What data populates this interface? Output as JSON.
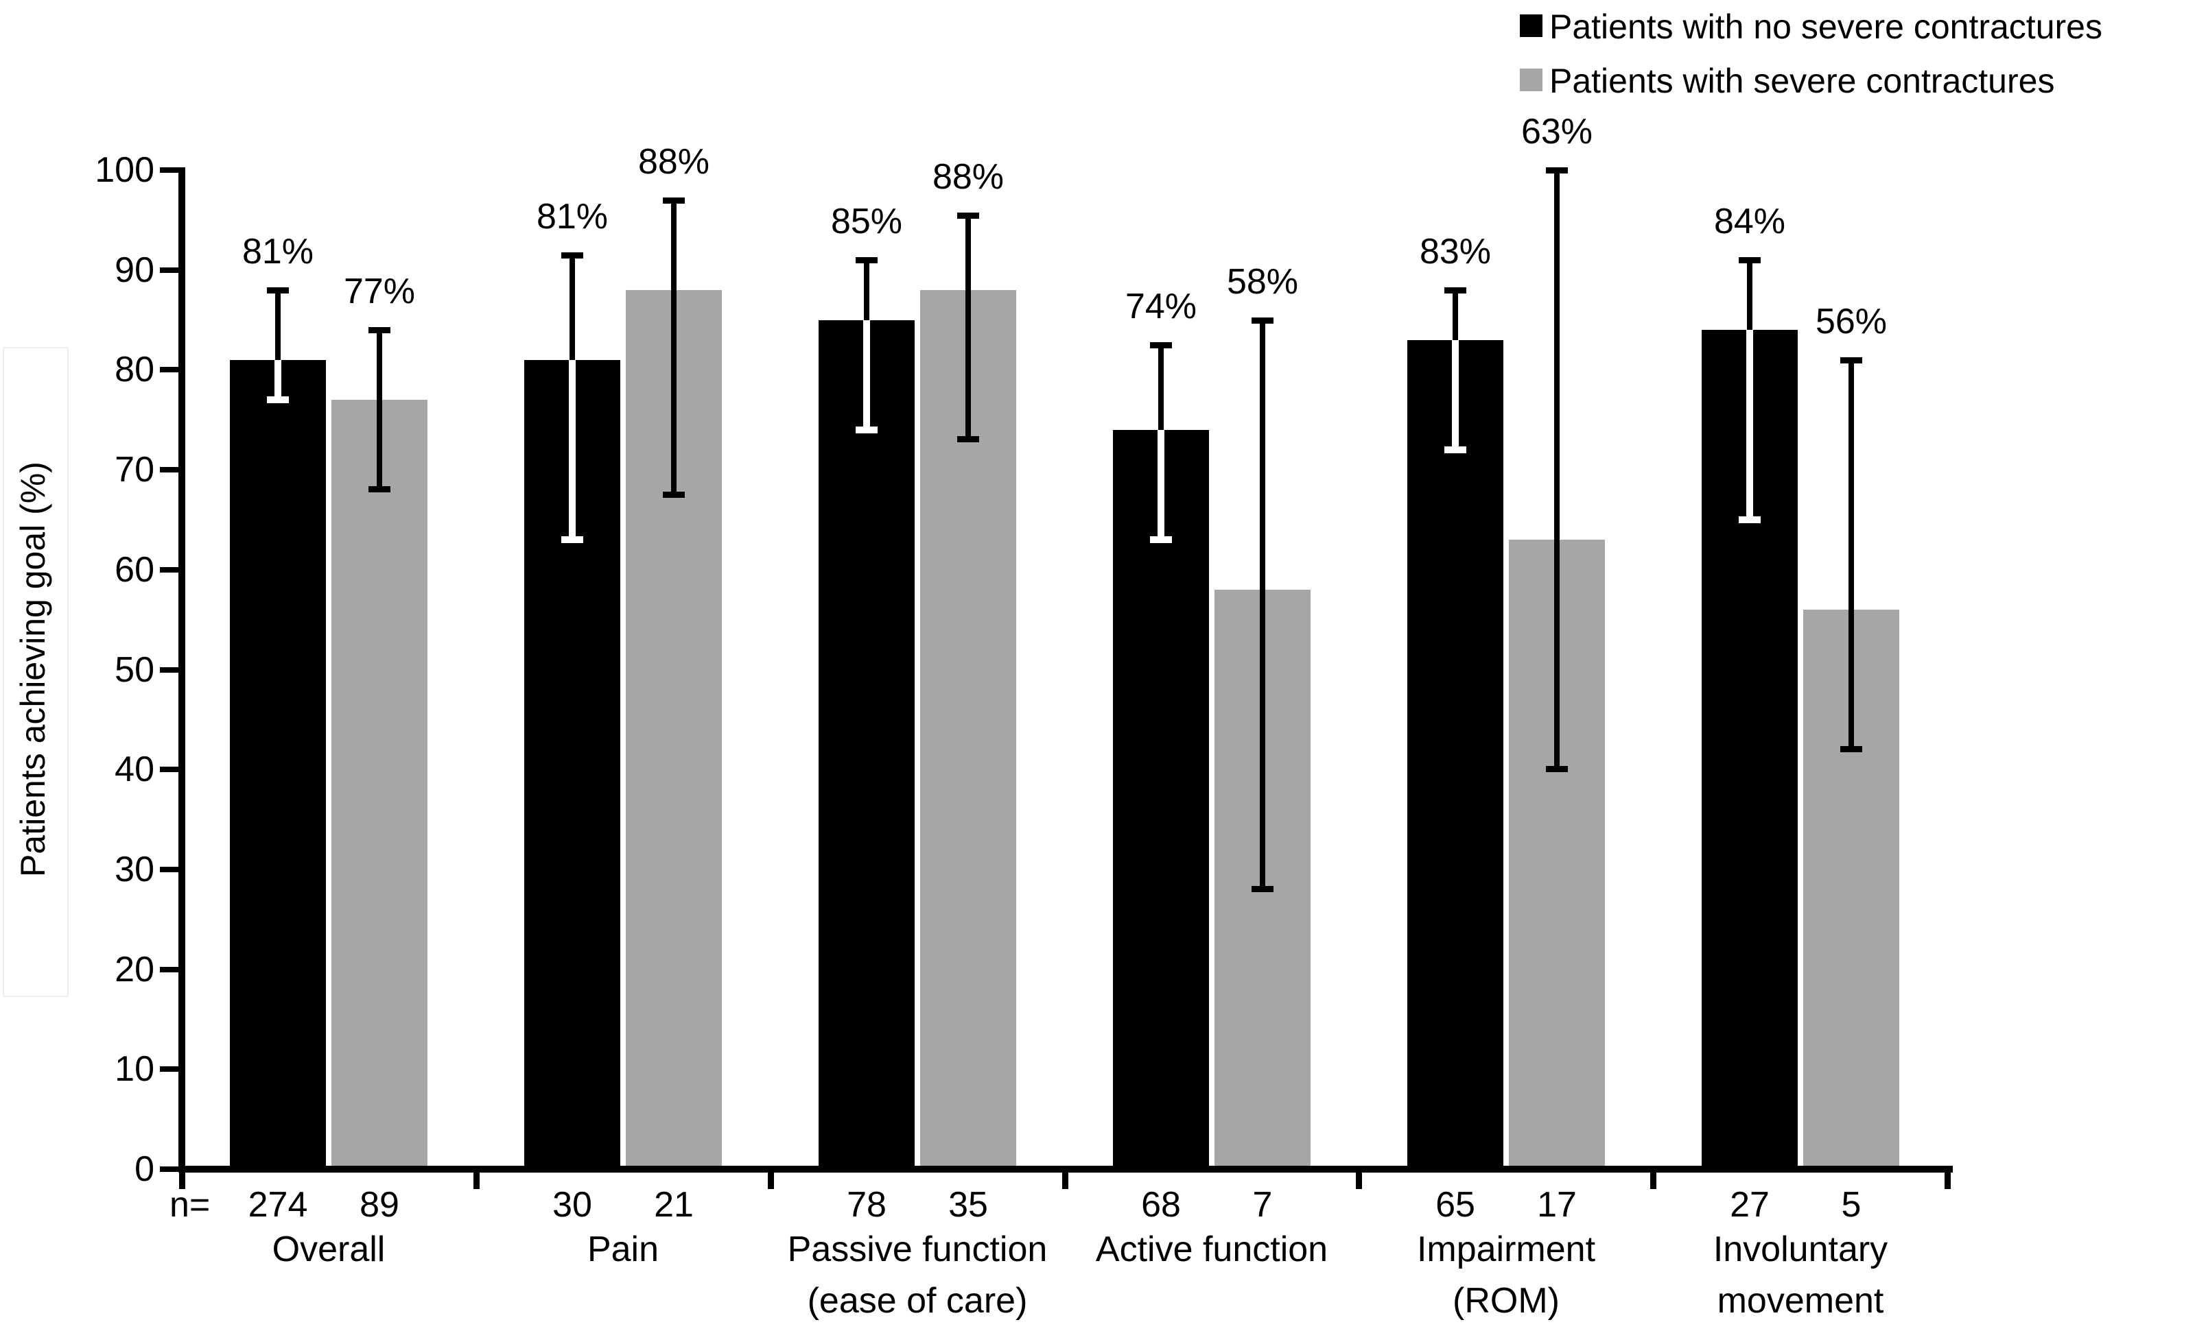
{
  "chart_data": {
    "type": "bar",
    "title": "",
    "ylabel": "Patients achieving goal (%)",
    "xlabel": "",
    "ylim": [
      0,
      100
    ],
    "yticks": [
      0,
      10,
      20,
      30,
      40,
      50,
      60,
      70,
      80,
      90,
      100
    ],
    "grid": false,
    "legend_position": "top-right",
    "n_prefix": "n=",
    "series": [
      {
        "name": "Patients with no severe contractures",
        "color": "#000000",
        "error_style": "split-white-below"
      },
      {
        "name": "Patients with severe contractures",
        "color": "#a6a6a6",
        "error_style": "solid-black"
      }
    ],
    "groups": [
      {
        "category_lines": [
          "Overall"
        ],
        "bars": [
          {
            "value": 81,
            "label": "81%",
            "n": "274",
            "ci": [
              77,
              88
            ]
          },
          {
            "value": 77,
            "label": "77%",
            "n": "89",
            "ci": [
              68,
              84
            ]
          }
        ]
      },
      {
        "category_lines": [
          "Pain"
        ],
        "bars": [
          {
            "value": 81,
            "label": "81%",
            "n": "30",
            "ci": [
              63,
              91.5
            ]
          },
          {
            "value": 88,
            "label": "88%",
            "n": "21",
            "ci": [
              67.5,
              97
            ]
          }
        ]
      },
      {
        "category_lines": [
          "Passive function",
          "(ease of care)"
        ],
        "bars": [
          {
            "value": 85,
            "label": "85%",
            "n": "78",
            "ci": [
              74,
              91
            ]
          },
          {
            "value": 88,
            "label": "88%",
            "n": "35",
            "ci": [
              73,
              95.5
            ]
          }
        ]
      },
      {
        "category_lines": [
          "Active function"
        ],
        "bars": [
          {
            "value": 74,
            "label": "74%",
            "n": "68",
            "ci": [
              63,
              82.5
            ]
          },
          {
            "value": 58,
            "label": "58%",
            "n": "7",
            "ci": [
              28,
              85
            ]
          }
        ]
      },
      {
        "category_lines": [
          "Impairment",
          "(ROM)"
        ],
        "bars": [
          {
            "value": 83,
            "label": "83%",
            "n": "65",
            "ci": [
              72,
              88
            ]
          },
          {
            "value": 63,
            "label": "63%",
            "n": "17",
            "ci": [
              40,
              100
            ]
          }
        ]
      },
      {
        "category_lines": [
          "Involuntary",
          "movement"
        ],
        "bars": [
          {
            "value": 84,
            "label": "84%",
            "n": "27",
            "ci": [
              65,
              91
            ]
          },
          {
            "value": 56,
            "label": "56%",
            "n": "5",
            "ci": [
              42,
              81
            ]
          }
        ]
      }
    ]
  }
}
